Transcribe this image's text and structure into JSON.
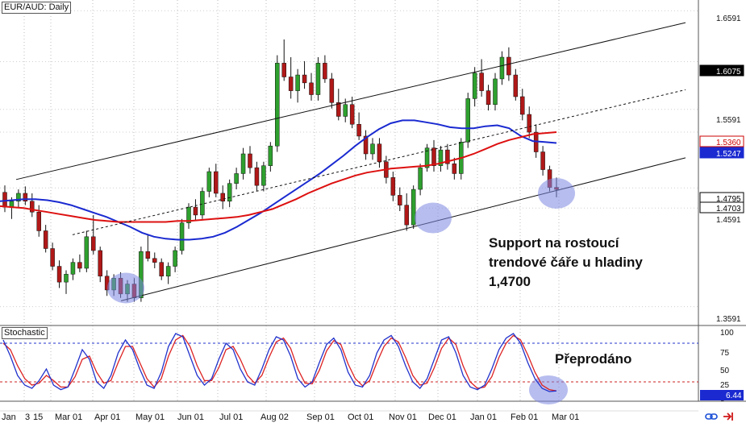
{
  "chart_data": {
    "type": "candlestick",
    "symbol_title": "EUR/AUD: Daily",
    "x_ticks": [
      "Jan",
      "3",
      "15",
      "Mar 01",
      "Apr 01",
      "May 01",
      "Jun 01",
      "Jul 01",
      "Aug 02",
      "Sep 01",
      "Oct 01",
      "Nov 01",
      "Dec 01",
      "Jan 01",
      "Feb 01",
      "Mar 01"
    ],
    "price_ticks": [
      "1.6591",
      "1.6075",
      "1.5591",
      "1.5360",
      "1.5247",
      "1.4795",
      "1.4703",
      "1.4591",
      "1.3591"
    ],
    "price_range": [
      1.34,
      1.67
    ],
    "highlight_tags": [
      {
        "label": "1.6075",
        "bg": "#000000",
        "fg": "#ffffff"
      },
      {
        "label": "1.5360",
        "bg": "#ffffff",
        "fg": "#cc0000",
        "border": "#cc0000"
      },
      {
        "label": "1.5247",
        "bg": "#1a2ad0",
        "fg": "#ffffff"
      },
      {
        "label": "1.4795",
        "bg": "#ffffff",
        "fg": "#000000",
        "border": "#000000"
      },
      {
        "label": "1.4703",
        "bg": "#ffffff",
        "fg": "#000000",
        "border": "#000000"
      }
    ],
    "candles_ohlc": [
      [
        1.475,
        1.482,
        1.455,
        1.46
      ],
      [
        1.46,
        1.47,
        1.448,
        1.466
      ],
      [
        1.466,
        1.478,
        1.46,
        1.474
      ],
      [
        1.474,
        1.481,
        1.462,
        1.466
      ],
      [
        1.466,
        1.474,
        1.45,
        1.455
      ],
      [
        1.455,
        1.462,
        1.43,
        1.436
      ],
      [
        1.436,
        1.442,
        1.414,
        1.418
      ],
      [
        1.418,
        1.424,
        1.396,
        1.4
      ],
      [
        1.4,
        1.406,
        1.378,
        1.384
      ],
      [
        1.384,
        1.396,
        1.372,
        1.392
      ],
      [
        1.392,
        1.408,
        1.386,
        1.404
      ],
      [
        1.404,
        1.412,
        1.394,
        1.398
      ],
      [
        1.398,
        1.436,
        1.394,
        1.43
      ],
      [
        1.43,
        1.452,
        1.412,
        1.416
      ],
      [
        1.416,
        1.42,
        1.384,
        1.39
      ],
      [
        1.39,
        1.396,
        1.37,
        1.376
      ],
      [
        1.376,
        1.392,
        1.37,
        1.388
      ],
      [
        1.388,
        1.394,
        1.368,
        1.372
      ],
      [
        1.372,
        1.386,
        1.364,
        1.382
      ],
      [
        1.382,
        1.388,
        1.364,
        1.368
      ],
      [
        1.368,
        1.42,
        1.364,
        1.415
      ],
      [
        1.415,
        1.432,
        1.405,
        1.408
      ],
      [
        1.408,
        1.414,
        1.398,
        1.404
      ],
      [
        1.404,
        1.408,
        1.386,
        1.39
      ],
      [
        1.39,
        1.404,
        1.382,
        1.4
      ],
      [
        1.4,
        1.42,
        1.394,
        1.416
      ],
      [
        1.416,
        1.448,
        1.412,
        1.444
      ],
      [
        1.444,
        1.464,
        1.438,
        1.46
      ],
      [
        1.46,
        1.468,
        1.446,
        1.452
      ],
      [
        1.452,
        1.48,
        1.448,
        1.476
      ],
      [
        1.476,
        1.5,
        1.47,
        1.496
      ],
      [
        1.496,
        1.504,
        1.47,
        1.474
      ],
      [
        1.474,
        1.482,
        1.458,
        1.466
      ],
      [
        1.466,
        1.488,
        1.46,
        1.484
      ],
      [
        1.484,
        1.5,
        1.478,
        1.494
      ],
      [
        1.494,
        1.52,
        1.488,
        1.514
      ],
      [
        1.514,
        1.522,
        1.494,
        1.5
      ],
      [
        1.5,
        1.506,
        1.476,
        1.482
      ],
      [
        1.482,
        1.506,
        1.476,
        1.502
      ],
      [
        1.502,
        1.526,
        1.496,
        1.522
      ],
      [
        1.522,
        1.614,
        1.516,
        1.606
      ],
      [
        1.606,
        1.63,
        1.588,
        1.592
      ],
      [
        1.592,
        1.612,
        1.57,
        1.578
      ],
      [
        1.578,
        1.6,
        1.566,
        1.594
      ],
      [
        1.594,
        1.608,
        1.58,
        1.586
      ],
      [
        1.586,
        1.596,
        1.568,
        1.574
      ],
      [
        1.574,
        1.612,
        1.568,
        1.606
      ],
      [
        1.606,
        1.614,
        1.586,
        1.59
      ],
      [
        1.59,
        1.596,
        1.56,
        1.566
      ],
      [
        1.566,
        1.58,
        1.548,
        1.552
      ],
      [
        1.552,
        1.57,
        1.546,
        1.564
      ],
      [
        1.564,
        1.572,
        1.54,
        1.544
      ],
      [
        1.544,
        1.556,
        1.528,
        1.532
      ],
      [
        1.532,
        1.538,
        1.508,
        1.514
      ],
      [
        1.514,
        1.53,
        1.508,
        1.524
      ],
      [
        1.524,
        1.53,
        1.5,
        1.506
      ],
      [
        1.506,
        1.512,
        1.484,
        1.49
      ],
      [
        1.49,
        1.496,
        1.466,
        1.472
      ],
      [
        1.472,
        1.48,
        1.456,
        1.462
      ],
      [
        1.462,
        1.474,
        1.436,
        1.442
      ],
      [
        1.442,
        1.482,
        1.438,
        1.478
      ],
      [
        1.478,
        1.504,
        1.472,
        1.5
      ],
      [
        1.5,
        1.524,
        1.496,
        1.52
      ],
      [
        1.52,
        1.528,
        1.496,
        1.502
      ],
      [
        1.502,
        1.522,
        1.496,
        1.518
      ],
      [
        1.518,
        1.524,
        1.498,
        1.504
      ],
      [
        1.504,
        1.51,
        1.488,
        1.494
      ],
      [
        1.494,
        1.53,
        1.488,
        1.526
      ],
      [
        1.526,
        1.576,
        1.52,
        1.57
      ],
      [
        1.57,
        1.602,
        1.562,
        1.596
      ],
      [
        1.596,
        1.61,
        1.572,
        1.578
      ],
      [
        1.578,
        1.584,
        1.558,
        1.564
      ],
      [
        1.564,
        1.596,
        1.558,
        1.59
      ],
      [
        1.59,
        1.618,
        1.584,
        1.612
      ],
      [
        1.612,
        1.622,
        1.588,
        1.594
      ],
      [
        1.594,
        1.6,
        1.568,
        1.572
      ],
      [
        1.572,
        1.58,
        1.548,
        1.554
      ],
      [
        1.554,
        1.562,
        1.53,
        1.536
      ],
      [
        1.536,
        1.544,
        1.51,
        1.516
      ],
      [
        1.516,
        1.522,
        1.492,
        1.498
      ],
      [
        1.498,
        1.502,
        1.476,
        1.48
      ],
      [
        1.48,
        1.49,
        1.47,
        1.478
      ]
    ],
    "series": [
      {
        "name": "",
        "color": "#1a2ad0",
        "values": [
          1.466,
          1.467,
          1.468,
          1.468,
          1.467,
          1.465,
          1.462,
          1.458,
          1.454,
          1.45,
          1.445,
          1.44,
          1.434,
          1.43,
          1.428,
          1.427,
          1.427,
          1.428,
          1.43,
          1.434,
          1.44,
          1.447,
          1.454,
          1.462,
          1.47,
          1.478,
          1.486,
          1.494,
          1.503,
          1.512,
          1.522,
          1.531,
          1.539,
          1.545,
          1.548,
          1.548,
          1.546,
          1.544,
          1.541,
          1.54,
          1.54,
          1.542,
          1.543,
          1.54,
          1.532,
          1.527,
          1.526,
          1.525
        ]
      },
      {
        "name": "",
        "color": "#dd1010",
        "values": [
          1.461,
          1.46,
          1.459,
          1.457,
          1.455,
          1.453,
          1.451,
          1.449,
          1.447,
          1.446,
          1.445,
          1.445,
          1.445,
          1.445,
          1.445,
          1.446,
          1.446,
          1.447,
          1.448,
          1.449,
          1.45,
          1.452,
          1.455,
          1.458,
          1.463,
          1.468,
          1.474,
          1.479,
          1.484,
          1.488,
          1.492,
          1.495,
          1.497,
          1.499,
          1.5,
          1.501,
          1.502,
          1.504,
          1.507,
          1.51,
          1.514,
          1.519,
          1.524,
          1.528,
          1.531,
          1.534,
          1.535,
          1.536
        ]
      }
    ],
    "stochastic": {
      "label": "Stochastic",
      "levels": [
        "100",
        "75",
        "50",
        "25",
        "0"
      ],
      "overbought": 80,
      "oversold": 20,
      "current_label": "6.44",
      "k": [
        85,
        60,
        30,
        15,
        10,
        22,
        40,
        15,
        8,
        12,
        40,
        70,
        55,
        20,
        10,
        30,
        65,
        85,
        70,
        40,
        15,
        10,
        35,
        75,
        95,
        90,
        60,
        30,
        15,
        25,
        55,
        80,
        70,
        40,
        20,
        15,
        40,
        70,
        90,
        85,
        60,
        25,
        12,
        20,
        50,
        78,
        88,
        70,
        35,
        15,
        12,
        30,
        65,
        85,
        92,
        75,
        45,
        20,
        10,
        25,
        55,
        85,
        90,
        65,
        30,
        12,
        8,
        15,
        40,
        70,
        88,
        95,
        80,
        50,
        25,
        10,
        5,
        6
      ],
      "d": [
        80,
        70,
        45,
        25,
        15,
        18,
        30,
        22,
        12,
        12,
        28,
        55,
        60,
        35,
        18,
        22,
        50,
        75,
        75,
        50,
        25,
        12,
        25,
        60,
        85,
        92,
        75,
        45,
        22,
        22,
        42,
        70,
        75,
        55,
        30,
        18,
        30,
        58,
        82,
        88,
        72,
        40,
        18,
        17,
        38,
        68,
        84,
        78,
        48,
        25,
        14,
        22,
        50,
        75,
        88,
        82,
        58,
        30,
        15,
        18,
        42,
        72,
        88,
        78,
        45,
        20,
        10,
        12,
        28,
        58,
        80,
        92,
        85,
        62,
        35,
        15,
        8,
        6
      ]
    },
    "channel_lines": [
      {
        "name": "",
        "style": "solid"
      },
      {
        "name": "",
        "style": "dashed"
      },
      {
        "name": "",
        "style": "solid"
      }
    ],
    "support_circles": 4,
    "annotations": [
      {
        "text_lines": [
          "Support na rostoucí",
          "trendové čáře u hladiny",
          "1,4700"
        ]
      },
      {
        "text_lines": [
          "Přeprodáno"
        ]
      }
    ],
    "colors": {
      "bull": "#2ea02e",
      "bear": "#b01818",
      "wick": "#111111",
      "circle": "#7b86e0"
    }
  },
  "toolbar": {
    "icons": [
      "link-icon",
      "arrow-right-icon"
    ]
  }
}
